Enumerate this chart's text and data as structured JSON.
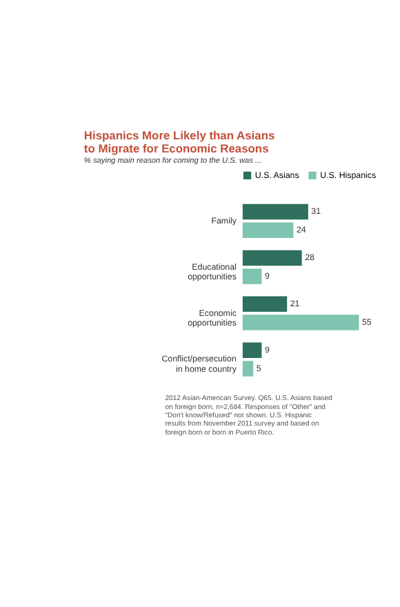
{
  "chart_data": {
    "type": "bar",
    "orientation": "horizontal",
    "title": "Hispanics More Likely than Asians to Migrate for Economic Reasons",
    "subtitle": "% saying main reason for coming to the U.S. was ...",
    "categories": [
      "Family",
      "Educational opportunities",
      "Economic opportunities",
      "Conflict/persecution in home country"
    ],
    "series": [
      {
        "name": "U.S. Asians",
        "color": "#2e6f5e",
        "values": [
          31,
          28,
          21,
          9
        ]
      },
      {
        "name": "U.S. Hispanics",
        "color": "#7fc4b0",
        "values": [
          24,
          9,
          55,
          5
        ]
      }
    ],
    "data_labels": true,
    "legend": "top",
    "annotations": [
      "2012 Asian-American Survey. Q65. U.S. Asians based on foreign born, n=2,684. Responses of \"Other\" and \"Don't know/Refused\" not shown. U.S. Hispanic results from November 2011 survey and based on foreign born or born in Puerto Rico."
    ]
  }
}
